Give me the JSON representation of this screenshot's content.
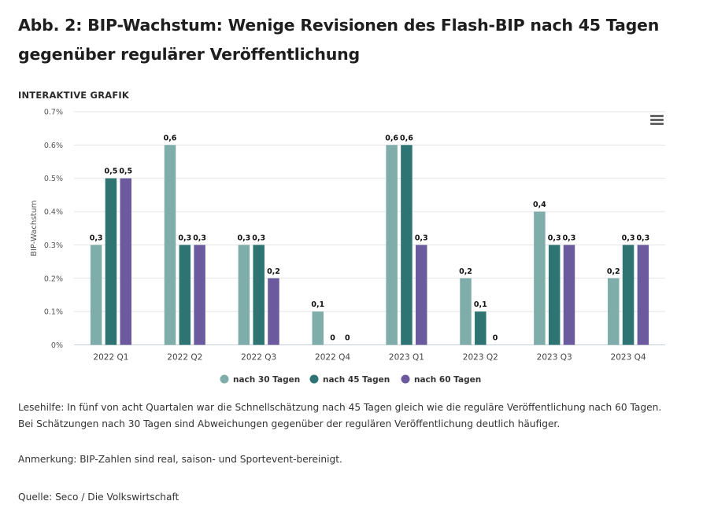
{
  "title": "Abb. 2: BIP-Wachstum: Wenige Revisionen des Flash-BIP nach 45 Tagen gegenüber regulärer Veröffentlichung",
  "subheading": "INTERAKTIVE GRAFIK",
  "menu_icon": "hamburger-menu-icon",
  "notes": {
    "reading_aid": "Lesehilfe: In fünf von acht Quartalen war die Schnellschätzung nach 45 Tagen gleich wie die reguläre Veröffentlichung nach 60 Tagen. Bei Schätzungen nach 30 Tagen sind Abweichungen gegenüber der regulären Veröffentlichung deutlich häufiger.",
    "remark": "Anmerkung: BIP-Zahlen sind real, saison- und Sportevent-bereinigt.",
    "source": "Quelle: Seco / Die Volkswirtschaft"
  },
  "chart_data": {
    "type": "bar",
    "ylabel": "BIP-Wachstum",
    "ylim": [
      0,
      0.7
    ],
    "yticks": [
      "0%",
      "0.1%",
      "0.2%",
      "0.3%",
      "0.4%",
      "0.5%",
      "0.6%",
      "0.7%"
    ],
    "categories": [
      "2022 Q1",
      "2022 Q2",
      "2022 Q3",
      "2022 Q4",
      "2023 Q1",
      "2023 Q2",
      "2023 Q3",
      "2023 Q4"
    ],
    "grid": true,
    "legend_position": "bottom",
    "series": [
      {
        "name": "nach 30 Tagen",
        "color": "#7fada9",
        "values": [
          0.3,
          0.6,
          0.3,
          0.1,
          0.6,
          0.2,
          0.4,
          0.2
        ],
        "labels": [
          "0,3",
          "0,6",
          "0,3",
          "0,1",
          "0,6",
          "0,2",
          "0,4",
          "0,2"
        ]
      },
      {
        "name": "nach 45 Tagen",
        "color": "#2d7472",
        "values": [
          0.5,
          0.3,
          0.3,
          0,
          0.6,
          0.1,
          0.3,
          0.3
        ],
        "labels": [
          "0,5",
          "0,3",
          "0,3",
          "0",
          "0,6",
          "0,1",
          "0,3",
          "0,3"
        ]
      },
      {
        "name": "nach 60 Tagen",
        "color": "#6b5b9e",
        "values": [
          0.5,
          0.3,
          0.2,
          0,
          0.3,
          0,
          0.3,
          0.3
        ],
        "labels": [
          "0,5",
          "0,3",
          "0,2",
          "0",
          "0,3",
          "0",
          "0,3",
          "0,3"
        ]
      }
    ]
  }
}
